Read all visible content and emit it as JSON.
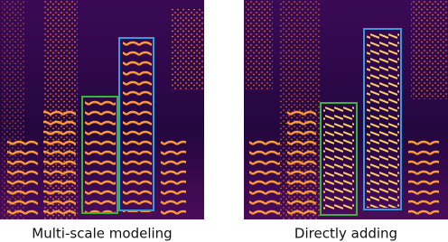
{
  "panels": [
    {
      "caption": "Multi-scale modeling"
    },
    {
      "caption": "Directly adding"
    }
  ]
}
